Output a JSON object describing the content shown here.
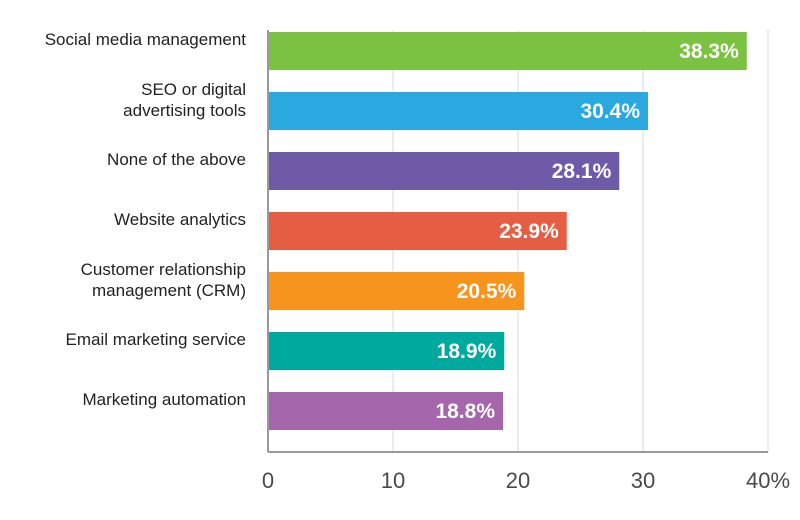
{
  "chart_data": {
    "type": "bar",
    "orientation": "horizontal",
    "categories": [
      "Social media management",
      "SEO or digital advertising tools",
      "None of the above",
      "Website analytics",
      "Customer relationship management (CRM)",
      "Email marketing service",
      "Marketing automation"
    ],
    "category_lines": [
      [
        "Social media management"
      ],
      [
        "SEO or digital",
        "advertising tools"
      ],
      [
        "None of the above"
      ],
      [
        "Website analytics"
      ],
      [
        "Customer relationship",
        "management (CRM)"
      ],
      [
        "Email marketing service"
      ],
      [
        "Marketing automation"
      ]
    ],
    "values": [
      38.3,
      30.4,
      28.1,
      23.9,
      20.5,
      18.9,
      18.8
    ],
    "value_labels": [
      "38.3%",
      "30.4%",
      "28.1%",
      "23.9%",
      "20.5%",
      "18.9%",
      "18.8%"
    ],
    "colors": [
      "#7cc242",
      "#29a9e0",
      "#6f5aa8",
      "#e55d42",
      "#f7941d",
      "#00a99d",
      "#a566ab"
    ],
    "xticks": [
      "0",
      "10",
      "20",
      "30",
      "40%"
    ],
    "xlim": [
      0,
      40
    ],
    "grid": true,
    "grid_color": "#e6e6e6",
    "axis_color": "#999999",
    "title": "",
    "xlabel": "",
    "ylabel": ""
  }
}
